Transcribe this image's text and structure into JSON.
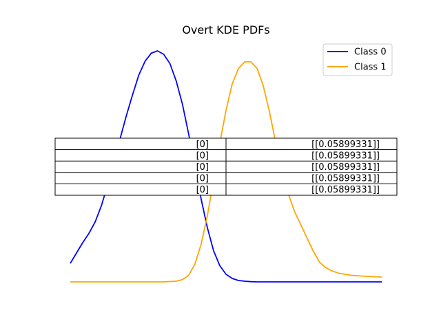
{
  "chart_data": {
    "type": "line",
    "title": "Overt KDE PDFs",
    "xlabel": "",
    "ylabel": "",
    "axes_visible": false,
    "grid": false,
    "legend_position": "top-right",
    "series": [
      {
        "name": "Class 0",
        "color": "#0000ff",
        "x": [
          0.0,
          0.02,
          0.04,
          0.06,
          0.08,
          0.1,
          0.12,
          0.14,
          0.16,
          0.18,
          0.2,
          0.22,
          0.24,
          0.26,
          0.28,
          0.3,
          0.32,
          0.34,
          0.36,
          0.38,
          0.4,
          0.42,
          0.44,
          0.46,
          0.48,
          0.5,
          0.52,
          0.54,
          0.56,
          0.58,
          0.6,
          0.65,
          0.7,
          0.75,
          0.8,
          0.85,
          0.9,
          0.95,
          1.0
        ],
        "y": [
          0.08,
          0.125,
          0.17,
          0.21,
          0.26,
          0.33,
          0.42,
          0.52,
          0.62,
          0.72,
          0.81,
          0.895,
          0.955,
          0.99,
          1.0,
          0.985,
          0.945,
          0.87,
          0.77,
          0.64,
          0.5,
          0.36,
          0.235,
          0.135,
          0.07,
          0.033,
          0.015,
          0.006,
          0.003,
          0.001,
          0.0,
          0.0,
          0.0,
          0.0,
          0.0,
          0.0,
          0.0,
          0.0,
          0.0
        ]
      },
      {
        "name": "Class 1",
        "color": "#ffa500",
        "x": [
          0.0,
          0.05,
          0.1,
          0.15,
          0.2,
          0.25,
          0.3,
          0.34,
          0.36,
          0.38,
          0.4,
          0.42,
          0.44,
          0.46,
          0.48,
          0.5,
          0.52,
          0.54,
          0.56,
          0.58,
          0.6,
          0.62,
          0.64,
          0.66,
          0.68,
          0.7,
          0.72,
          0.74,
          0.76,
          0.78,
          0.8,
          0.82,
          0.84,
          0.86,
          0.88,
          0.9,
          0.92,
          0.95,
          1.0
        ],
        "y": [
          0.0,
          0.0,
          0.0,
          0.0,
          0.0,
          0.0,
          0.0,
          0.003,
          0.01,
          0.03,
          0.08,
          0.17,
          0.3,
          0.46,
          0.63,
          0.78,
          0.9,
          0.97,
          1.0,
          1.0,
          0.97,
          0.89,
          0.77,
          0.63,
          0.5,
          0.4,
          0.32,
          0.26,
          0.2,
          0.14,
          0.09,
          0.065,
          0.05,
          0.04,
          0.035,
          0.03,
          0.028,
          0.025,
          0.022
        ]
      }
    ],
    "table": {
      "rows": [
        [
          "[0]",
          "[[0.05899331]]"
        ],
        [
          "[0]",
          "[[0.05899331]]"
        ],
        [
          "[0]",
          "[[0.05899331]]"
        ],
        [
          "[0]",
          "[[0.05899331]]"
        ],
        [
          "[0]",
          "[[0.05899331]]"
        ]
      ]
    }
  }
}
